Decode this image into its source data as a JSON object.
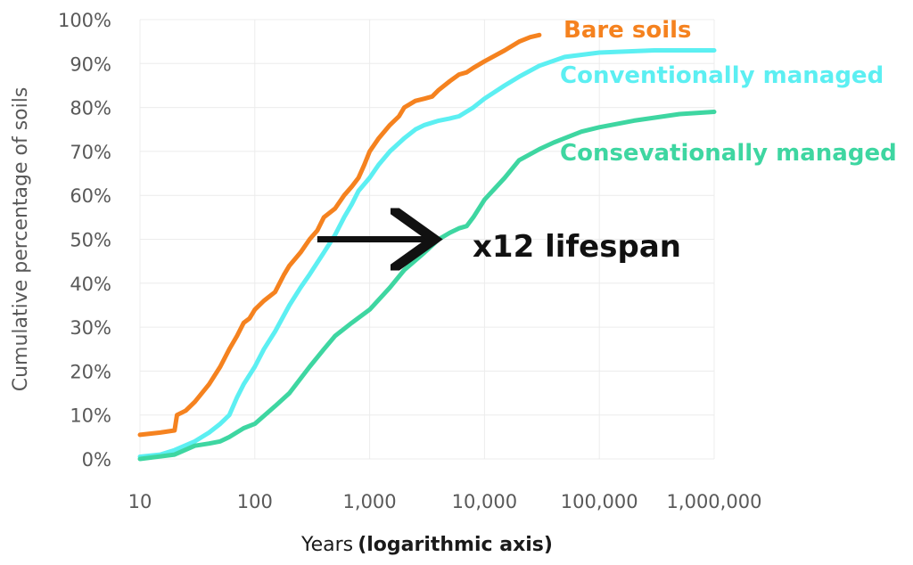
{
  "chart_data": {
    "type": "line",
    "xlabel": "Years",
    "xlabel_emphasis": "(logarithmic axis)",
    "ylabel": "Cumulative percentage of soils",
    "x_scale": "log",
    "xlim": [
      10,
      1000000
    ],
    "ylim": [
      0,
      100
    ],
    "x_ticks": [
      10,
      100,
      1000,
      10000,
      100000,
      1000000
    ],
    "x_tick_labels": [
      "10",
      "100",
      "1,000",
      "10,000",
      "100,000",
      "1,000,000"
    ],
    "y_ticks": [
      0,
      10,
      20,
      30,
      40,
      50,
      60,
      70,
      80,
      90,
      100
    ],
    "y_tick_labels": [
      "0%",
      "10%",
      "20%",
      "30%",
      "40%",
      "50%",
      "60%",
      "70%",
      "80%",
      "90%",
      "100%"
    ],
    "grid": true,
    "series": [
      {
        "name": "Bare soils",
        "color": "#F5821F",
        "x": [
          10,
          15,
          20,
          21,
          25,
          30,
          40,
          50,
          60,
          70,
          80,
          90,
          100,
          120,
          150,
          180,
          200,
          250,
          300,
          350,
          400,
          500,
          600,
          700,
          800,
          900,
          1000,
          1200,
          1500,
          1800,
          2000,
          2500,
          3000,
          3500,
          4000,
          5000,
          6000,
          7000,
          8000,
          10000,
          15000,
          20000,
          25000,
          30000
        ],
        "y": [
          5.5,
          6,
          6.5,
          10,
          11,
          13,
          17,
          21,
          25,
          28,
          31,
          32,
          34,
          36,
          38,
          42,
          44,
          47,
          50,
          52,
          55,
          57,
          60,
          62,
          64,
          67,
          70,
          73,
          76,
          78,
          80,
          81.5,
          82,
          82.5,
          84,
          86,
          87.5,
          88,
          89,
          90.5,
          93,
          95,
          96,
          96.5
        ]
      },
      {
        "name": "Conventionally managed",
        "color": "#5CEFF2",
        "x": [
          10,
          15,
          20,
          30,
          40,
          50,
          60,
          70,
          80,
          100,
          120,
          150,
          200,
          250,
          300,
          400,
          500,
          600,
          700,
          800,
          1000,
          1200,
          1500,
          2000,
          2500,
          3000,
          4000,
          5000,
          6000,
          8000,
          10000,
          15000,
          20000,
          30000,
          50000,
          100000,
          300000,
          1000000
        ],
        "y": [
          0.5,
          1,
          2,
          4,
          6,
          8,
          10,
          14,
          17,
          21,
          25,
          29,
          35,
          39,
          42,
          47,
          51,
          55,
          58,
          61,
          64,
          67,
          70,
          73,
          75,
          76,
          77,
          77.5,
          78,
          80,
          82,
          85,
          87,
          89.5,
          91.5,
          92.5,
          93,
          93
        ]
      },
      {
        "name": "Consevationally managed",
        "color": "#3ED6A1",
        "x": [
          10,
          20,
          30,
          40,
          50,
          60,
          80,
          100,
          150,
          200,
          300,
          400,
          500,
          700,
          1000,
          1500,
          2000,
          3000,
          4000,
          5000,
          6000,
          7000,
          8000,
          10000,
          15000,
          20000,
          30000,
          40000,
          50000,
          70000,
          100000,
          200000,
          500000,
          1000000
        ],
        "y": [
          0,
          1,
          3,
          3.5,
          4,
          5,
          7,
          8,
          12,
          15,
          21,
          25,
          28,
          31,
          34,
          39,
          43,
          47,
          50,
          51.5,
          52.5,
          53,
          55,
          59,
          64,
          68,
          70.5,
          72,
          73,
          74.5,
          75.5,
          77,
          78.5,
          79
        ]
      }
    ],
    "annotation": {
      "text": "x12 lifespan",
      "arrow_from": {
        "x": 350,
        "y": 50
      },
      "arrow_to": {
        "x": 4000,
        "y": 50
      }
    }
  }
}
